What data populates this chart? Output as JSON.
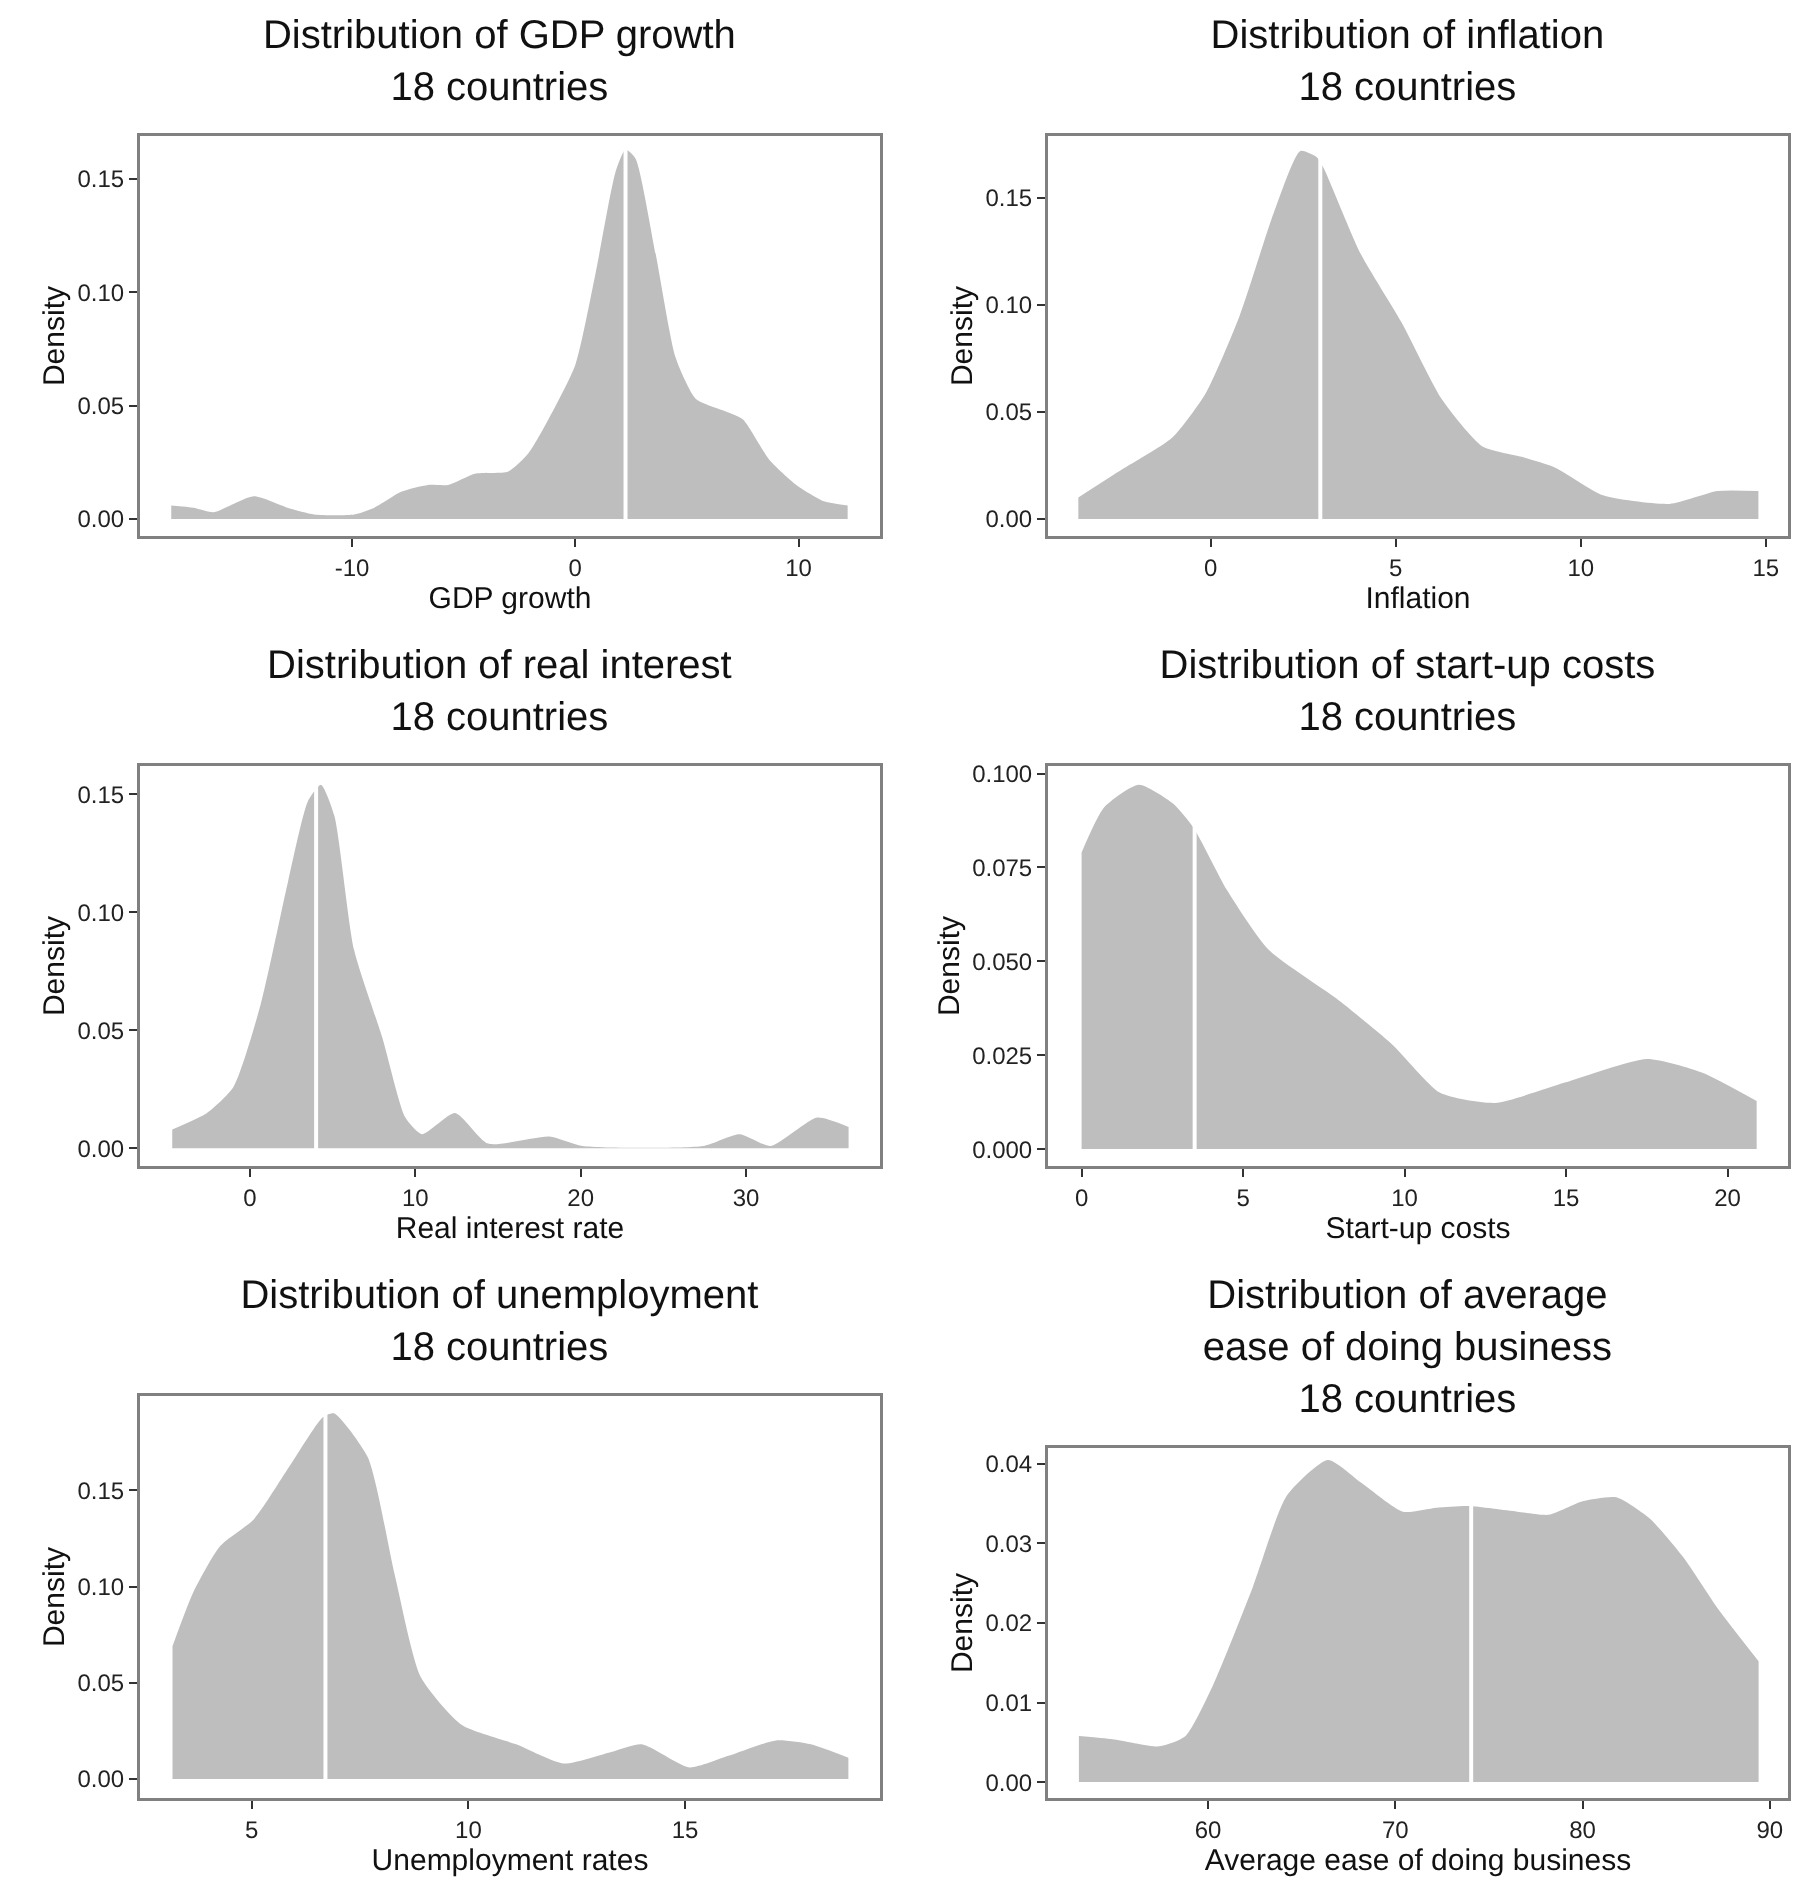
{
  "chart_data": [
    {
      "type": "area",
      "title": "Distribution of GDP growth\n18 countries",
      "xlabel": "GDP growth",
      "ylabel": "Density",
      "x": [
        -18.1,
        -17.1,
        -16.2,
        -14.4,
        -12.9,
        -11.7,
        -9.9,
        -9.0,
        -7.8,
        -6.6,
        -5.7,
        -4.5,
        -3.0,
        -2.1,
        -1.2,
        0,
        0.9,
        1.8,
        2.25,
        2.7,
        3.6,
        4.5,
        5.4,
        6.6,
        7.5,
        8.7,
        9.9,
        11.1,
        12.2
      ],
      "series": [
        {
          "color": "#bebebe",
          "values": [
            0.006,
            0.005,
            0.003,
            0.01,
            0.005,
            0.002,
            0.002,
            0.005,
            0.012,
            0.015,
            0.015,
            0.02,
            0.021,
            0.029,
            0.044,
            0.068,
            0.108,
            0.153,
            0.163,
            0.159,
            0.117,
            0.071,
            0.053,
            0.048,
            0.044,
            0.026,
            0.015,
            0.008,
            0.006
          ]
        }
      ],
      "xlim": [
        -19.5,
        13.65
      ],
      "xticks": [
        -10,
        0,
        10
      ],
      "ylim": [
        -0.0075,
        0.169
      ],
      "yticks": [
        {
          "value": 0,
          "label": "0.00"
        },
        {
          "value": 0.05,
          "label": "0.05"
        },
        {
          "value": 0.1,
          "label": "0.10"
        },
        {
          "value": 0.15,
          "label": "0.15"
        }
      ],
      "ref_lines": [
        {
          "axis": "x",
          "value": 2.25,
          "color": "#ffffff"
        }
      ]
    },
    {
      "type": "area",
      "title": "Distribution of inflation\n18 countries",
      "xlabel": "Inflation",
      "ylabel": "Density",
      "x": [
        -3.58,
        -2.5,
        -1.04,
        -0.13,
        0.78,
        1.7,
        2.42,
        2.87,
        3.05,
        4.05,
        5.15,
        6.24,
        7.33,
        8.4,
        9.3,
        10.6,
        12.4,
        13.7,
        14.8
      ],
      "series": [
        {
          "color": "#bebebe",
          "values": [
            0.01,
            0.022,
            0.038,
            0.059,
            0.095,
            0.143,
            0.172,
            0.169,
            0.164,
            0.124,
            0.092,
            0.056,
            0.034,
            0.029,
            0.024,
            0.011,
            0.007,
            0.013,
            0.013
          ]
        }
      ],
      "xlim": [
        -4.4,
        15.6
      ],
      "xticks": [
        0,
        5,
        10,
        15
      ],
      "ylim": [
        -0.008,
        0.179
      ],
      "yticks": [
        {
          "value": 0,
          "label": "0.00"
        },
        {
          "value": 0.05,
          "label": "0.05"
        },
        {
          "value": 0.1,
          "label": "0.10"
        },
        {
          "value": 0.15,
          "label": "0.15"
        }
      ],
      "ref_lines": [
        {
          "axis": "x",
          "value": 2.96,
          "color": "#ffffff"
        }
      ]
    },
    {
      "type": "area",
      "title": "Distribution of real interest\n18 countries",
      "xlabel": "Real interest rate",
      "ylabel": "Density",
      "x": [
        -4.7,
        -2.6,
        -1.0,
        0.65,
        2.3,
        3.5,
        4.3,
        5.1,
        6.3,
        8.0,
        9.4,
        10.4,
        12.4,
        14.4,
        18.1,
        20.1,
        27.4,
        29.6,
        31.5,
        34.3,
        36.2
      ],
      "series": [
        {
          "color": "#bebebe",
          "values": [
            0.008,
            0.015,
            0.026,
            0.061,
            0.113,
            0.147,
            0.154,
            0.141,
            0.084,
            0.047,
            0.013,
            0.006,
            0.015,
            0.002,
            0.005,
            0.001,
            0.001,
            0.006,
            0.001,
            0.013,
            0.009
          ]
        }
      ],
      "xlim": [
        -6.65,
        38.1
      ],
      "xticks": [
        0,
        10,
        20,
        30
      ],
      "ylim": [
        -0.0075,
        0.162
      ],
      "yticks": [
        {
          "value": 0,
          "label": "0.00"
        },
        {
          "value": 0.05,
          "label": "0.05"
        },
        {
          "value": 0.1,
          "label": "0.10"
        },
        {
          "value": 0.15,
          "label": "0.15"
        }
      ],
      "ref_lines": [
        {
          "axis": "x",
          "value": 4.0,
          "color": "#ffffff"
        }
      ]
    },
    {
      "type": "area",
      "title": "Distribution of start-up costs\n18 countries",
      "xlabel": "Start-up costs",
      "ylabel": "Density",
      "x": [
        0,
        0.7,
        1.77,
        2.83,
        3.47,
        4.5,
        5.8,
        7.9,
        9.6,
        11.1,
        12.8,
        14.96,
        17.5,
        19.2,
        20.9
      ],
      "series": [
        {
          "color": "#bebebe",
          "values": [
            0.079,
            0.091,
            0.097,
            0.092,
            0.0855,
            0.069,
            0.053,
            0.04,
            0.028,
            0.015,
            0.0123,
            0.0177,
            0.024,
            0.0204,
            0.0128
          ]
        }
      ],
      "xlim": [
        -1.04,
        21.87
      ],
      "xticks": [
        0,
        5,
        10,
        15,
        20
      ],
      "ylim": [
        -0.0045,
        0.102
      ],
      "yticks": [
        {
          "value": 0,
          "label": "0.000"
        },
        {
          "value": 0.025,
          "label": "0.025"
        },
        {
          "value": 0.05,
          "label": "0.050"
        },
        {
          "value": 0.075,
          "label": "0.075"
        },
        {
          "value": 0.1,
          "label": "0.100"
        }
      ],
      "ref_lines": [
        {
          "axis": "x",
          "value": 3.5,
          "color": "#ffffff"
        }
      ]
    },
    {
      "type": "area",
      "title": "Distribution of unemployment\n18 countries",
      "xlabel": "Unemployment rates",
      "ylabel": "Density",
      "x": [
        3.17,
        3.65,
        4.27,
        5.05,
        5.8,
        6.64,
        6.9,
        7.68,
        8.3,
        8.9,
        9.85,
        11.1,
        12.2,
        13.3,
        14.0,
        15.1,
        16.0,
        17.1,
        17.9,
        18.77
      ],
      "series": [
        {
          "color": "#bebebe",
          "values": [
            0.069,
            0.097,
            0.121,
            0.135,
            0.16,
            0.188,
            0.19,
            0.167,
            0.106,
            0.053,
            0.028,
            0.018,
            0.008,
            0.014,
            0.018,
            0.006,
            0.012,
            0.02,
            0.018,
            0.011
          ]
        }
      ],
      "xlim": [
        2.42,
        19.5
      ],
      "xticks": [
        5,
        10,
        15
      ],
      "ylim": [
        -0.0099,
        0.199
      ],
      "yticks": [
        {
          "value": 0,
          "label": "0.00"
        },
        {
          "value": 0.05,
          "label": "0.05"
        },
        {
          "value": 0.1,
          "label": "0.10"
        },
        {
          "value": 0.15,
          "label": "0.15"
        }
      ],
      "ref_lines": [
        {
          "axis": "x",
          "value": 6.7,
          "color": "#ffffff"
        }
      ]
    },
    {
      "type": "area",
      "title": "Distribution of average\nease of doing business\n18 countries",
      "xlabel": "Average ease of doing business",
      "ylabel": "Density",
      "x": [
        53.1,
        54.9,
        57.4,
        58.8,
        60.25,
        62.4,
        64.2,
        66.4,
        68.2,
        70.4,
        72.2,
        73.9,
        76.5,
        78.2,
        80.0,
        81.8,
        83.6,
        85.4,
        87.2,
        89.4
      ],
      "series": [
        {
          "color": "#bebebe",
          "values": [
            0.0058,
            0.0054,
            0.0045,
            0.0058,
            0.0121,
            0.0246,
            0.036,
            0.0405,
            0.0376,
            0.034,
            0.0345,
            0.0347,
            0.034,
            0.0336,
            0.0353,
            0.0358,
            0.0331,
            0.0282,
            0.0219,
            0.0152
          ]
        }
      ],
      "xlim": [
        51.45,
        90.97
      ],
      "xticks": [
        60,
        70,
        80,
        90
      ],
      "ylim": [
        -0.002,
        0.042
      ],
      "yticks": [
        {
          "value": 0,
          "label": "0.00"
        },
        {
          "value": 0.01,
          "label": "0.01"
        },
        {
          "value": 0.02,
          "label": "0.02"
        },
        {
          "value": 0.03,
          "label": "0.03"
        },
        {
          "value": 0.04,
          "label": "0.04"
        }
      ],
      "ref_lines": [
        {
          "axis": "x",
          "value": 74.05,
          "color": "#ffffff"
        }
      ]
    }
  ]
}
